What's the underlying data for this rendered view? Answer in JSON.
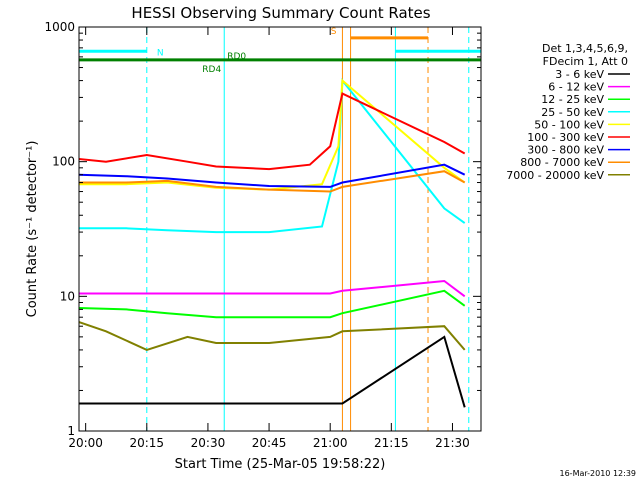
{
  "chart_data": {
    "type": "line",
    "title": "HESSI Observing Summary Count Rates",
    "xlabel": "Start Time (25-Mar-05 19:58:22)",
    "ylabel": "Count Rate (s⁻¹ detector⁻¹)",
    "y_scale": "log",
    "ylim": [
      1,
      1000
    ],
    "xlim": [
      "19:58:22",
      "21:37:00"
    ],
    "x_ticks": [
      "20:00",
      "20:15",
      "20:30",
      "20:45",
      "21:00",
      "21:15",
      "21:30"
    ],
    "y_ticks": [
      "1",
      "10",
      "100",
      "1000"
    ],
    "legend": {
      "position": "right",
      "header": [
        "Det 1,3,4,5,6,9,",
        "FDecim 1, Att 0"
      ]
    },
    "series": [
      {
        "name": "3 - 6 keV",
        "color": "#000000",
        "x": [
          "19:58",
          "20:10",
          "20:20",
          "20:32",
          "20:45",
          "21:00",
          "21:03",
          "21:28",
          "21:33"
        ],
        "values": [
          1.6,
          1.6,
          1.6,
          1.6,
          1.6,
          1.6,
          1.6,
          5,
          1.5
        ]
      },
      {
        "name": "6 - 12 keV",
        "color": "#ff00ff",
        "x": [
          "19:58",
          "20:10",
          "20:20",
          "20:32",
          "20:45",
          "21:00",
          "21:03",
          "21:28",
          "21:33"
        ],
        "values": [
          10.5,
          10.5,
          10.5,
          10.5,
          10.5,
          10.5,
          11,
          13,
          10
        ]
      },
      {
        "name": "12 - 25 keV",
        "color": "#00ff00",
        "x": [
          "19:58",
          "20:10",
          "20:20",
          "20:32",
          "20:45",
          "21:00",
          "21:03",
          "21:28",
          "21:33"
        ],
        "values": [
          8.2,
          8,
          7.5,
          7,
          7,
          7,
          7.5,
          11,
          8.5
        ]
      },
      {
        "name": "25 - 50 keV",
        "color": "#00ffff",
        "x": [
          "19:58",
          "20:10",
          "20:20",
          "20:32",
          "20:45",
          "20:58",
          "21:02",
          "21:03",
          "21:28",
          "21:33"
        ],
        "values": [
          32,
          32,
          31,
          30,
          30,
          33,
          100,
          400,
          45,
          35
        ]
      },
      {
        "name": "50 - 100 keV",
        "color": "#ffff00",
        "x": [
          "19:58",
          "20:10",
          "20:20",
          "20:32",
          "20:45",
          "20:58",
          "21:02",
          "21:03",
          "21:28",
          "21:33"
        ],
        "values": [
          68,
          68,
          70,
          64,
          62,
          68,
          130,
          400,
          90,
          70
        ]
      },
      {
        "name": "100 - 300 keV",
        "color": "#ff0000",
        "x": [
          "19:58",
          "20:05",
          "20:15",
          "20:25",
          "20:32",
          "20:45",
          "20:55",
          "21:00",
          "21:03",
          "21:28",
          "21:33"
        ],
        "values": [
          105,
          100,
          112,
          100,
          92,
          88,
          95,
          130,
          320,
          140,
          115
        ]
      },
      {
        "name": "300 - 800 keV",
        "color": "#0000ff",
        "x": [
          "19:58",
          "20:10",
          "20:20",
          "20:32",
          "20:45",
          "21:00",
          "21:03",
          "21:28",
          "21:33"
        ],
        "values": [
          80,
          78,
          75,
          70,
          66,
          65,
          70,
          95,
          80
        ]
      },
      {
        "name": "800 - 7000 keV",
        "color": "#ff8c00",
        "x": [
          "19:58",
          "20:10",
          "20:20",
          "20:32",
          "20:45",
          "21:00",
          "21:03",
          "21:28",
          "21:33"
        ],
        "values": [
          70,
          70,
          72,
          65,
          62,
          60,
          65,
          85,
          70
        ]
      },
      {
        "name": "7000 - 20000 keV",
        "color": "#808000",
        "x": [
          "19:58",
          "20:05",
          "20:15",
          "20:25",
          "20:32",
          "20:45",
          "21:00",
          "21:03",
          "21:28",
          "21:33"
        ],
        "values": [
          6.5,
          5.5,
          4,
          5,
          4.5,
          4.5,
          5,
          5.5,
          6,
          4
        ]
      }
    ],
    "annotations": [
      {
        "label": "N",
        "color": "#00ffff",
        "x_start": "19:58",
        "x_end": "20:15"
      },
      {
        "label": "S",
        "color": "#ff8c00",
        "x_start": "21:05",
        "x_end": "21:24"
      },
      {
        "label": "RD0",
        "color": "#008000"
      },
      {
        "label": "RD4",
        "color": "#008000"
      }
    ],
    "vertical_markers": [
      {
        "x": "20:15",
        "color": "#00ffff",
        "style": "dashed"
      },
      {
        "x": "20:34",
        "color": "#00ffff",
        "style": "solid"
      },
      {
        "x": "21:03",
        "color": "#ff8c00",
        "style": "solid"
      },
      {
        "x": "21:05",
        "color": "#ff8c00",
        "style": "solid"
      },
      {
        "x": "21:16",
        "color": "#00ffff",
        "style": "solid"
      },
      {
        "x": "21:24",
        "color": "#ff8c00",
        "style": "dashed"
      },
      {
        "x": "21:34",
        "color": "#00ffff",
        "style": "dashed"
      }
    ]
  },
  "footer": {
    "timestamp": "16-Mar-2010 12:39"
  }
}
